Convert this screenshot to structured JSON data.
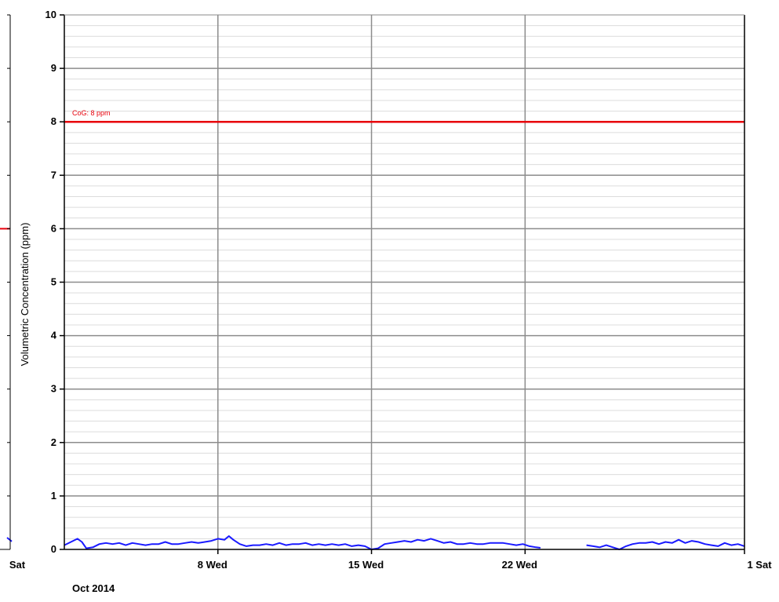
{
  "chart_data": {
    "type": "line",
    "ylabel": "Volumetric Concentration (ppm)",
    "period_label": "Oct 2014",
    "ylim": [
      0,
      10
    ],
    "yticks": [
      "0",
      "1",
      "2",
      "3",
      "4",
      "5",
      "6",
      "7",
      "8",
      "9",
      "10"
    ],
    "xlim": [
      1,
      32
    ],
    "xticks": [
      {
        "label": "8 Wed",
        "x": 8
      },
      {
        "label": "15 Wed",
        "x": 15
      },
      {
        "label": "22 Wed",
        "x": 22
      },
      {
        "label": "1 Sat",
        "x": 32
      }
    ],
    "left_panel_xtick": "Sat",
    "grid": true,
    "threshold": {
      "label": "CoG: 8 ppm",
      "value": 8,
      "color": "#e8000b"
    },
    "left_panel_threshold": {
      "value": 6,
      "color": "#e8000b"
    },
    "left_panel_series_tail": [
      {
        "x": -0.3,
        "y": 0.22
      },
      {
        "x": 0,
        "y": 0.15
      }
    ],
    "series": [
      {
        "color": "#1a1aff",
        "segments": [
          [
            {
              "x": 1.0,
              "y": 0.08
            },
            {
              "x": 1.3,
              "y": 0.14
            },
            {
              "x": 1.6,
              "y": 0.2
            },
            {
              "x": 1.8,
              "y": 0.14
            },
            {
              "x": 2.0,
              "y": 0.02
            },
            {
              "x": 2.3,
              "y": 0.04
            },
            {
              "x": 2.6,
              "y": 0.1
            },
            {
              "x": 2.9,
              "y": 0.12
            },
            {
              "x": 3.2,
              "y": 0.1
            },
            {
              "x": 3.5,
              "y": 0.12
            },
            {
              "x": 3.8,
              "y": 0.08
            },
            {
              "x": 4.1,
              "y": 0.12
            },
            {
              "x": 4.4,
              "y": 0.1
            },
            {
              "x": 4.7,
              "y": 0.08
            },
            {
              "x": 5.0,
              "y": 0.1
            },
            {
              "x": 5.3,
              "y": 0.1
            },
            {
              "x": 5.6,
              "y": 0.14
            },
            {
              "x": 5.9,
              "y": 0.1
            },
            {
              "x": 6.2,
              "y": 0.1
            },
            {
              "x": 6.5,
              "y": 0.12
            },
            {
              "x": 6.8,
              "y": 0.14
            },
            {
              "x": 7.1,
              "y": 0.12
            },
            {
              "x": 7.4,
              "y": 0.14
            },
            {
              "x": 7.7,
              "y": 0.16
            },
            {
              "x": 8.0,
              "y": 0.2
            },
            {
              "x": 8.3,
              "y": 0.18
            },
            {
              "x": 8.5,
              "y": 0.25
            },
            {
              "x": 8.7,
              "y": 0.18
            },
            {
              "x": 9.0,
              "y": 0.1
            },
            {
              "x": 9.3,
              "y": 0.06
            },
            {
              "x": 9.6,
              "y": 0.08
            },
            {
              "x": 9.9,
              "y": 0.08
            },
            {
              "x": 10.2,
              "y": 0.1
            },
            {
              "x": 10.5,
              "y": 0.08
            },
            {
              "x": 10.8,
              "y": 0.12
            },
            {
              "x": 11.1,
              "y": 0.08
            },
            {
              "x": 11.4,
              "y": 0.1
            },
            {
              "x": 11.7,
              "y": 0.1
            },
            {
              "x": 12.0,
              "y": 0.12
            },
            {
              "x": 12.3,
              "y": 0.08
            },
            {
              "x": 12.6,
              "y": 0.1
            },
            {
              "x": 12.9,
              "y": 0.08
            },
            {
              "x": 13.2,
              "y": 0.1
            },
            {
              "x": 13.5,
              "y": 0.08
            },
            {
              "x": 13.8,
              "y": 0.1
            },
            {
              "x": 14.1,
              "y": 0.06
            },
            {
              "x": 14.4,
              "y": 0.08
            },
            {
              "x": 14.7,
              "y": 0.06
            },
            {
              "x": 15.0,
              "y": 0.0
            },
            {
              "x": 15.3,
              "y": 0.02
            },
            {
              "x": 15.6,
              "y": 0.1
            },
            {
              "x": 15.9,
              "y": 0.12
            },
            {
              "x": 16.2,
              "y": 0.14
            },
            {
              "x": 16.5,
              "y": 0.16
            },
            {
              "x": 16.8,
              "y": 0.14
            },
            {
              "x": 17.1,
              "y": 0.18
            },
            {
              "x": 17.4,
              "y": 0.16
            },
            {
              "x": 17.7,
              "y": 0.2
            },
            {
              "x": 18.0,
              "y": 0.16
            },
            {
              "x": 18.3,
              "y": 0.12
            },
            {
              "x": 18.6,
              "y": 0.14
            },
            {
              "x": 18.9,
              "y": 0.1
            },
            {
              "x": 19.2,
              "y": 0.1
            },
            {
              "x": 19.5,
              "y": 0.12
            },
            {
              "x": 19.8,
              "y": 0.1
            },
            {
              "x": 20.1,
              "y": 0.1
            },
            {
              "x": 20.4,
              "y": 0.12
            },
            {
              "x": 20.7,
              "y": 0.12
            },
            {
              "x": 21.0,
              "y": 0.12
            },
            {
              "x": 21.3,
              "y": 0.1
            },
            {
              "x": 21.6,
              "y": 0.08
            },
            {
              "x": 21.9,
              "y": 0.1
            },
            {
              "x": 22.2,
              "y": 0.06
            },
            {
              "x": 22.5,
              "y": 0.04
            },
            {
              "x": 22.7,
              "y": 0.03
            }
          ],
          [
            {
              "x": 24.8,
              "y": 0.08
            },
            {
              "x": 25.1,
              "y": 0.06
            },
            {
              "x": 25.4,
              "y": 0.04
            },
            {
              "x": 25.7,
              "y": 0.08
            },
            {
              "x": 26.0,
              "y": 0.04
            },
            {
              "x": 26.3,
              "y": 0.0
            },
            {
              "x": 26.6,
              "y": 0.06
            },
            {
              "x": 26.9,
              "y": 0.1
            },
            {
              "x": 27.2,
              "y": 0.12
            },
            {
              "x": 27.5,
              "y": 0.12
            },
            {
              "x": 27.8,
              "y": 0.14
            },
            {
              "x": 28.1,
              "y": 0.1
            },
            {
              "x": 28.4,
              "y": 0.14
            },
            {
              "x": 28.7,
              "y": 0.12
            },
            {
              "x": 29.0,
              "y": 0.18
            },
            {
              "x": 29.3,
              "y": 0.12
            },
            {
              "x": 29.6,
              "y": 0.16
            },
            {
              "x": 29.9,
              "y": 0.14
            },
            {
              "x": 30.2,
              "y": 0.1
            },
            {
              "x": 30.5,
              "y": 0.08
            },
            {
              "x": 30.8,
              "y": 0.06
            },
            {
              "x": 31.1,
              "y": 0.12
            },
            {
              "x": 31.4,
              "y": 0.08
            },
            {
              "x": 31.7,
              "y": 0.1
            },
            {
              "x": 32.0,
              "y": 0.06
            }
          ]
        ]
      }
    ]
  }
}
